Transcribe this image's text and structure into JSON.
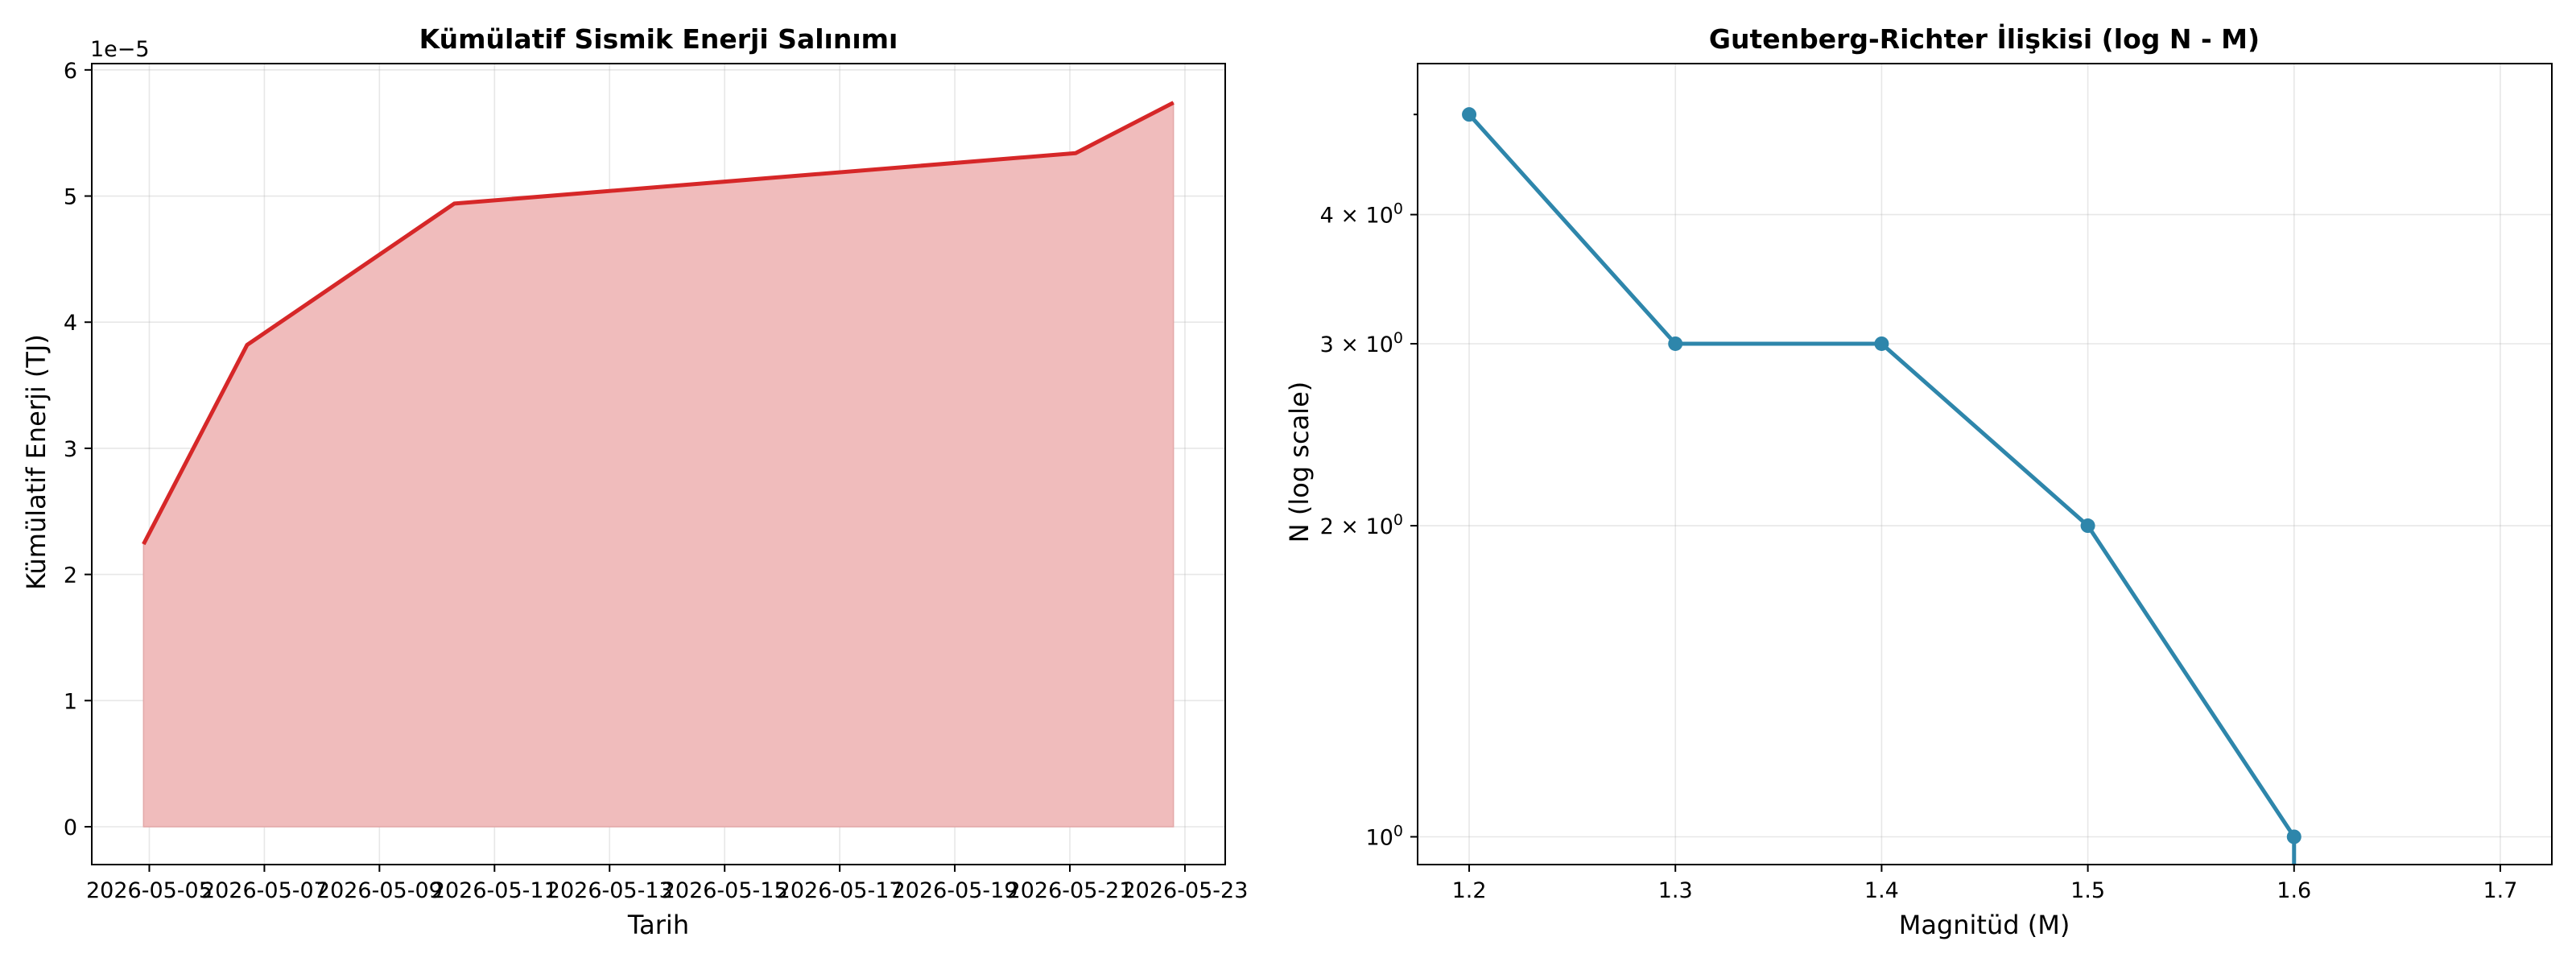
{
  "chart_data": [
    {
      "type": "area",
      "title": "Kümülatif Sismik Enerji Salınımı",
      "xlabel": "Tarih",
      "ylabel": "Kümülatif Enerji (TJ)",
      "y_offset_label": "1e−5",
      "x_ticks": [
        "2026-05-05",
        "2026-05-07",
        "2026-05-09",
        "2026-05-11",
        "2026-05-13",
        "2026-05-15",
        "2026-05-17",
        "2026-05-19",
        "2026-05-21",
        "2026-05-23"
      ],
      "y_ticks": [
        "0",
        "1",
        "2",
        "3",
        "4",
        "5",
        "6"
      ],
      "xlim": [
        "2026-05-04",
        "2026-05-23.7"
      ],
      "ylim": [
        -0.3,
        6.05
      ],
      "y_scale_factor": 1e-05,
      "line_color": "#d62728",
      "fill_color": "#f0bcbc",
      "grid": true,
      "series": [
        {
          "x": [
            "2026-05-04.9",
            "2026-05-06.7",
            "2026-05-10.3",
            "2026-05-21.1",
            "2026-05-22.8"
          ],
          "values": [
            2.24,
            3.82,
            4.94,
            5.34,
            5.74
          ]
        }
      ]
    },
    {
      "type": "line",
      "title": "Gutenberg-Richter İlişkisi (log N - M)",
      "xlabel": "Magnitüd (M)",
      "ylabel": "N (log scale)",
      "y_scale": "log",
      "x_ticks": [
        "1.2",
        "1.3",
        "1.4",
        "1.5",
        "1.6",
        "1.7"
      ],
      "y_ticks": [
        {
          "value": 1,
          "mant": "",
          "exp": "0",
          "base": "10"
        },
        {
          "value": 2,
          "mant": "2",
          "exp": "0",
          "base": "10"
        },
        {
          "value": 3,
          "mant": "3",
          "exp": "0",
          "base": "10"
        },
        {
          "value": 4,
          "mant": "4",
          "exp": "0",
          "base": "10"
        }
      ],
      "xlim": [
        1.175,
        1.725
      ],
      "ylim": [
        0.94,
        5.6
      ],
      "line_color": "#2e86ab",
      "grid": true,
      "series": [
        {
          "x": [
            1.2,
            1.3,
            1.4,
            1.5,
            1.6
          ],
          "values": [
            5,
            3,
            3,
            2,
            1
          ]
        }
      ]
    }
  ]
}
